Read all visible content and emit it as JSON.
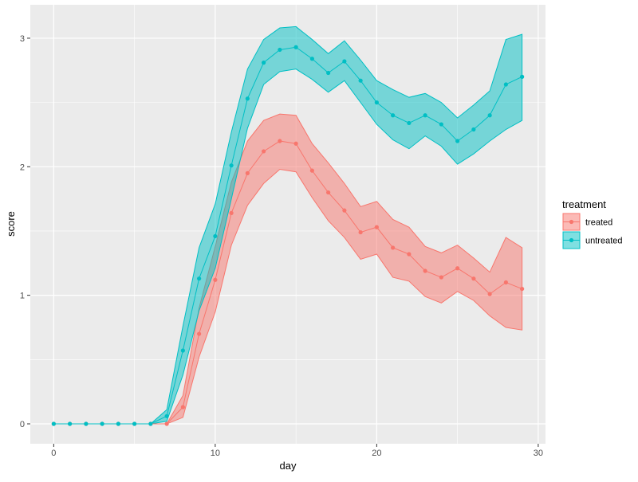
{
  "chart_data": {
    "type": "line",
    "subtype": "line-with-points-and-ribbon",
    "title": "",
    "xlabel": "day",
    "ylabel": "score",
    "xlim": [
      -1.45,
      30.45
    ],
    "ylim": [
      -0.155,
      3.26
    ],
    "x_ticks": [
      0,
      10,
      20,
      30
    ],
    "y_ticks": [
      0,
      1,
      2,
      3
    ],
    "x_minor_ticks": [
      5,
      15,
      25
    ],
    "y_minor_ticks": [
      0.5,
      1.5,
      2.5
    ],
    "grid": true,
    "background": "#ebebeb",
    "legend": {
      "title": "treatment",
      "position": "right"
    },
    "series": [
      {
        "name": "treated",
        "color": "#f8766d",
        "x": [
          0,
          1,
          2,
          3,
          4,
          5,
          6,
          7,
          8,
          9,
          10,
          11,
          12,
          13,
          14,
          15,
          16,
          17,
          18,
          19,
          20,
          21,
          22,
          23,
          24,
          25,
          26,
          27,
          28,
          29
        ],
        "values": [
          0,
          0,
          0,
          0,
          0,
          0,
          0,
          0,
          0.13,
          0.7,
          1.12,
          1.64,
          1.95,
          2.12,
          2.2,
          2.18,
          1.97,
          1.8,
          1.66,
          1.49,
          1.53,
          1.37,
          1.32,
          1.19,
          1.14,
          1.21,
          1.13,
          1.01,
          1.1,
          1.05
        ],
        "lower": [
          0,
          0,
          0,
          0,
          0,
          0,
          0,
          0,
          0.05,
          0.52,
          0.87,
          1.39,
          1.7,
          1.87,
          1.98,
          1.96,
          1.76,
          1.58,
          1.45,
          1.28,
          1.32,
          1.14,
          1.11,
          0.99,
          0.94,
          1.03,
          0.96,
          0.84,
          0.75,
          0.73
        ],
        "upper": [
          0,
          0,
          0,
          0,
          0,
          0,
          0,
          0,
          0.22,
          0.9,
          1.38,
          1.88,
          2.2,
          2.36,
          2.41,
          2.4,
          2.18,
          2.03,
          1.87,
          1.69,
          1.73,
          1.59,
          1.53,
          1.38,
          1.33,
          1.39,
          1.29,
          1.18,
          1.45,
          1.37
        ]
      },
      {
        "name": "untreated",
        "color": "#00bfc4",
        "x": [
          0,
          1,
          2,
          3,
          4,
          5,
          6,
          7,
          8,
          9,
          10,
          11,
          12,
          13,
          14,
          15,
          16,
          17,
          18,
          19,
          20,
          21,
          22,
          23,
          24,
          25,
          26,
          27,
          28,
          29
        ],
        "values": [
          0,
          0,
          0,
          0,
          0,
          0,
          0,
          0.06,
          0.57,
          1.13,
          1.46,
          2.01,
          2.53,
          2.81,
          2.91,
          2.93,
          2.84,
          2.73,
          2.82,
          2.67,
          2.5,
          2.4,
          2.34,
          2.4,
          2.33,
          2.2,
          2.29,
          2.4,
          2.64,
          2.7
        ],
        "lower": [
          0,
          0,
          0,
          0,
          0,
          0,
          0,
          0.02,
          0.38,
          0.88,
          1.21,
          1.75,
          2.3,
          2.64,
          2.74,
          2.76,
          2.68,
          2.58,
          2.67,
          2.5,
          2.33,
          2.21,
          2.14,
          2.24,
          2.16,
          2.02,
          2.1,
          2.2,
          2.29,
          2.36
        ],
        "upper": [
          0,
          0,
          0,
          0,
          0,
          0,
          0,
          0.11,
          0.76,
          1.37,
          1.71,
          2.27,
          2.76,
          2.99,
          3.08,
          3.09,
          2.99,
          2.88,
          2.98,
          2.83,
          2.67,
          2.6,
          2.54,
          2.57,
          2.5,
          2.38,
          2.48,
          2.59,
          2.99,
          3.03
        ]
      }
    ]
  }
}
